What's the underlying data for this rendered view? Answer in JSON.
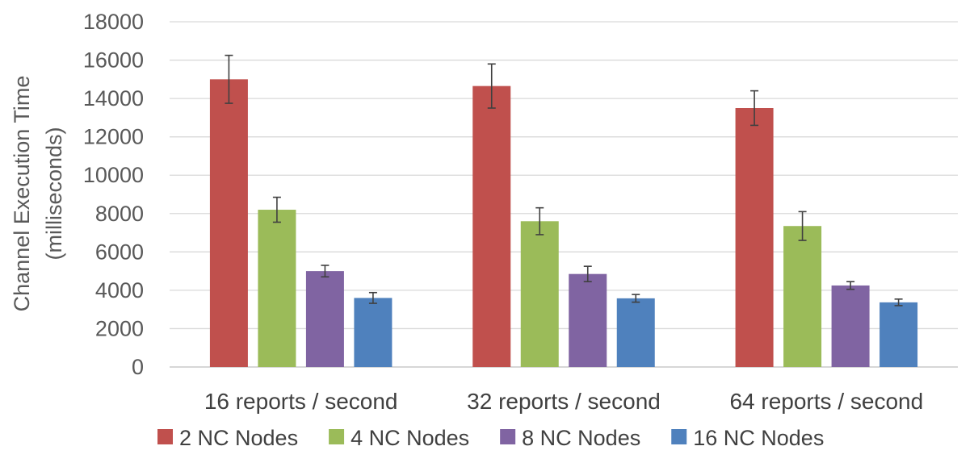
{
  "chart_data": {
    "type": "bar",
    "title": "",
    "xlabel": "",
    "ylabel_line1": "Channel Execution Time",
    "ylabel_line2": "(milliseconds)",
    "ylim": [
      0,
      18000
    ],
    "yticks": [
      0,
      2000,
      4000,
      6000,
      8000,
      10000,
      12000,
      14000,
      16000,
      18000
    ],
    "grid": true,
    "legend_position": "bottom",
    "categories": [
      "16 reports / second",
      "32 reports / second",
      "64 reports / second"
    ],
    "series": [
      {
        "name": "2 NC Nodes",
        "color": "#c0504d",
        "values": [
          15000,
          14650,
          13500
        ],
        "error": [
          1250,
          1150,
          900
        ]
      },
      {
        "name": "4 NC Nodes",
        "color": "#9bbb59",
        "values": [
          8200,
          7600,
          7350
        ],
        "error": [
          650,
          700,
          750
        ]
      },
      {
        "name": "8 NC Nodes",
        "color": "#8064a2",
        "values": [
          5000,
          4850,
          4250
        ],
        "error": [
          300,
          400,
          200
        ]
      },
      {
        "name": "16 NC Nodes",
        "color": "#4f81bd",
        "values": [
          3600,
          3580,
          3370
        ],
        "error": [
          280,
          200,
          170
        ]
      }
    ]
  }
}
